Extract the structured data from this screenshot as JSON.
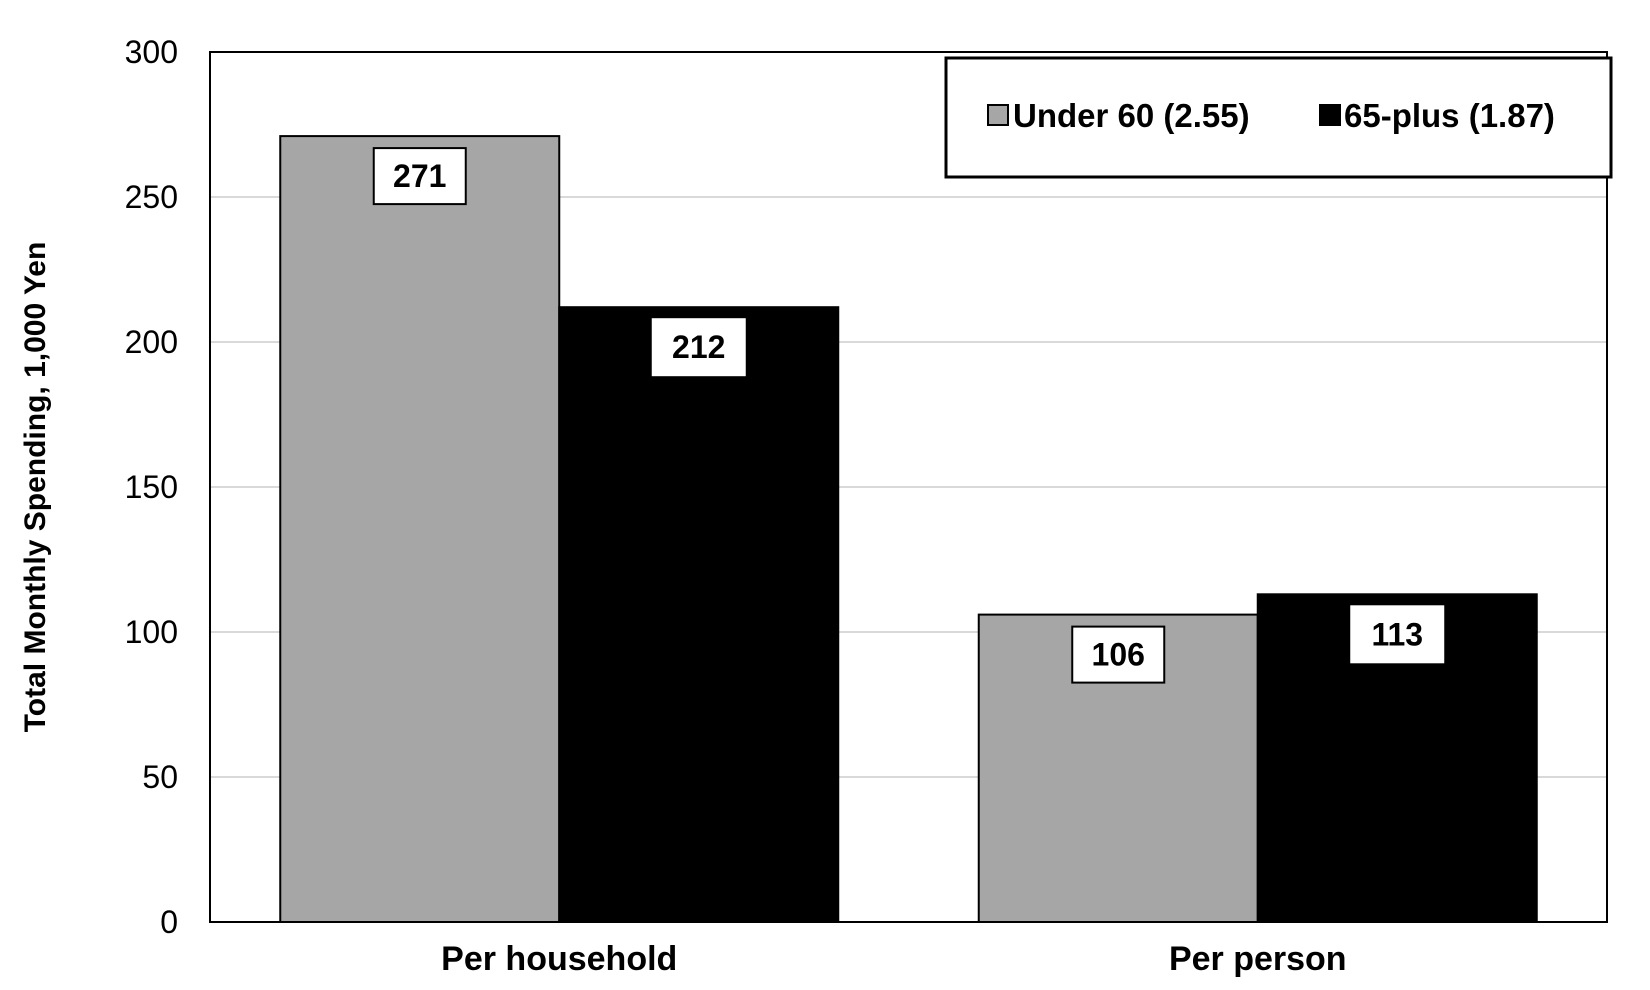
{
  "chart_data": {
    "type": "bar",
    "categories": [
      "Per household",
      "Per person"
    ],
    "series": [
      {
        "name": "Under 60 (2.55)",
        "values": [
          271,
          106
        ],
        "color": "#a6a6a6"
      },
      {
        "name": "65-plus (1.87)",
        "values": [
          212,
          113
        ],
        "color": "#000000"
      }
    ],
    "ylabel": "Total Monthly Spending, 1,000 Yen",
    "ylim": [
      0,
      300
    ],
    "yticks": [
      0,
      50,
      100,
      150,
      200,
      250,
      300
    ],
    "grid": true,
    "legend_position": "top-right"
  }
}
